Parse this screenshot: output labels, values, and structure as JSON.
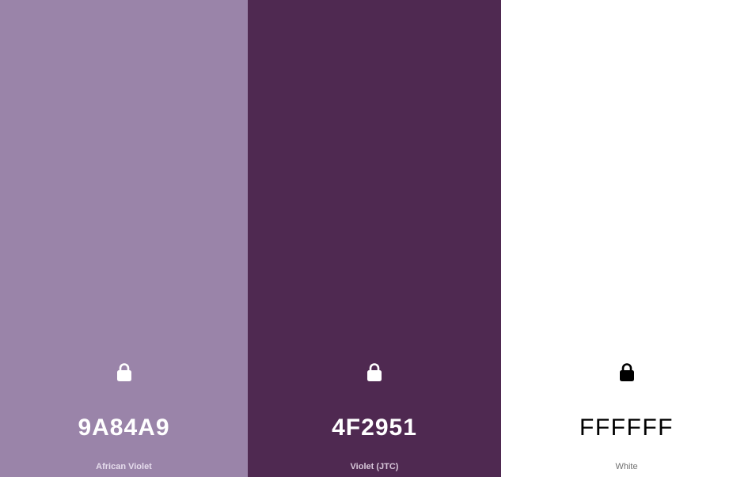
{
  "swatches": [
    {
      "hex": "9A84A9",
      "name": "African Violet",
      "background": "#9A84A9",
      "text_color": "#FFFFFF",
      "name_color": "#E6DDED",
      "icon": "lock-icon"
    },
    {
      "hex": "4F2951",
      "name": "Violet (JTC)",
      "background": "#4F2951",
      "text_color": "#FFFFFF",
      "name_color": "#D8C8DA",
      "icon": "lock-icon"
    },
    {
      "hex": "FFFFFF",
      "name": "White",
      "background": "#FFFFFF",
      "text_color": "#000000",
      "name_color": "#6E6E6E",
      "icon": "lock-icon"
    }
  ]
}
